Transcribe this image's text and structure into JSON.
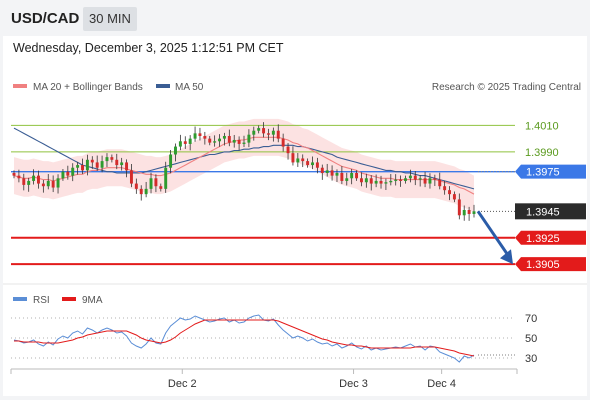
{
  "header": {
    "symbol": "USD/CAD",
    "timeframe": "30 MIN",
    "datetime": "Wednesday, December 3, 2025 1:12:51 PM CET"
  },
  "legend": {
    "ma20_label": "MA 20 + Bollinger Bands",
    "ma50_label": "MA 50",
    "copyright": "Research © 2025 Trading Central",
    "rsi_label": "RSI",
    "rsi_ma_label": "9MA"
  },
  "colors": {
    "candle_up": "#2e9b2e",
    "candle_down": "#d42b2b",
    "ma20": "#f08080",
    "bollinger_fill": "#fbd5d5",
    "ma50": "#3a5d94",
    "pivot": "#3b78e7",
    "resistance": "#8fc23f",
    "support": "#e31b1b",
    "price_tag": "#2b2b2b",
    "arrow": "#2b5ca8",
    "rsi": "#5b8ed6",
    "rsi_ma": "#e31b1b"
  },
  "chart_data": [
    {
      "type": "candlestick",
      "title": "USD/CAD",
      "ylim": [
        1.389,
        1.403
      ],
      "x_ticks": [
        "Dec 2",
        "Dec 3",
        "Dec 4"
      ],
      "x_tick_index": [
        35,
        70,
        88
      ],
      "n_bars": 95,
      "levels": [
        {
          "label": "1.4010",
          "value": 1.401,
          "kind": "resistance"
        },
        {
          "label": "1.3990",
          "value": 1.399,
          "kind": "resistance"
        },
        {
          "label": "1.3975",
          "value": 1.3975,
          "kind": "pivot"
        },
        {
          "label": "1.3945",
          "value": 1.3945,
          "kind": "last_price"
        },
        {
          "label": "1.3925",
          "value": 1.3925,
          "kind": "support"
        },
        {
          "label": "1.3905",
          "value": 1.3905,
          "kind": "support"
        }
      ],
      "forecast_arrow": {
        "from_index": 94,
        "from_value": 1.3945,
        "to_index": 100,
        "to_value": 1.3908
      },
      "close": [
        1.3972,
        1.397,
        1.3965,
        1.3968,
        1.3972,
        1.3966,
        1.3964,
        1.3968,
        1.3963,
        1.397,
        1.3975,
        1.3972,
        1.3978,
        1.398,
        1.3976,
        1.3984,
        1.3982,
        1.3978,
        1.3983,
        1.3986,
        1.3984,
        1.398,
        1.3982,
        1.3976,
        1.3966,
        1.3962,
        1.3958,
        1.3962,
        1.397,
        1.3964,
        1.3962,
        1.3978,
        1.3988,
        1.3994,
        1.3998,
        1.3996,
        1.4,
        1.4004,
        1.4002,
        1.4,
        1.3997,
        1.3998,
        1.4,
        1.4002,
        1.3997,
        1.3999,
        1.3996,
        1.3997,
        1.4003,
        1.4006,
        1.4008,
        1.4004,
        1.4003,
        1.4006,
        1.4,
        1.3994,
        1.3989,
        1.3982,
        1.3985,
        1.3983,
        1.398,
        1.3982,
        1.3978,
        1.3974,
        1.3976,
        1.3972,
        1.3974,
        1.3968,
        1.397,
        1.3974,
        1.397,
        1.3967,
        1.397,
        1.3966,
        1.3968,
        1.3966,
        1.3967,
        1.3968,
        1.3969,
        1.3968,
        1.397,
        1.3972,
        1.3969,
        1.397,
        1.3966,
        1.397,
        1.3969,
        1.3964,
        1.3961,
        1.3958,
        1.3954,
        1.3942,
        1.3946,
        1.3943,
        1.3945
      ],
      "high_offset": 0.0005,
      "low_offset": 0.0005,
      "ma20": [
        1.3972,
        1.3971,
        1.397,
        1.397,
        1.3971,
        1.397,
        1.3969,
        1.3969,
        1.3968,
        1.3969,
        1.397,
        1.3971,
        1.3972,
        1.3973,
        1.3973,
        1.3975,
        1.3976,
        1.3976,
        1.3977,
        1.3978,
        1.3978,
        1.3978,
        1.3978,
        1.3977,
        1.3976,
        1.3975,
        1.3974,
        1.3973,
        1.3973,
        1.3972,
        1.3972,
        1.3973,
        1.3974,
        1.3976,
        1.3978,
        1.398,
        1.3982,
        1.3984,
        1.3986,
        1.3988,
        1.399,
        1.3992,
        1.3994,
        1.3996,
        1.3997,
        1.3998,
        1.3999,
        1.3999,
        1.4,
        1.4001,
        1.4001,
        1.4001,
        1.4001,
        1.4001,
        1.4001,
        1.4,
        1.3999,
        1.3997,
        1.3996,
        1.3994,
        1.3993,
        1.3991,
        1.3989,
        1.3987,
        1.3985,
        1.3983,
        1.3981,
        1.3979,
        1.3978,
        1.3977,
        1.3976,
        1.3974,
        1.3973,
        1.3972,
        1.3971,
        1.397,
        1.397,
        1.397,
        1.3969,
        1.3969,
        1.3969,
        1.3969,
        1.3969,
        1.3969,
        1.3969,
        1.3969,
        1.3969,
        1.3968,
        1.3967,
        1.3966,
        1.3965,
        1.3963,
        1.3962,
        1.396,
        1.3958
      ],
      "bb_width": 0.0014,
      "ma50": [
        1.4008,
        1.4006,
        1.4004,
        1.4002,
        1.4,
        1.3998,
        1.3996,
        1.3994,
        1.3992,
        1.399,
        1.3988,
        1.3986,
        1.3984,
        1.3982,
        1.398,
        1.3979,
        1.3978,
        1.3977,
        1.3976,
        1.3975,
        1.3975,
        1.3974,
        1.3974,
        1.3974,
        1.3974,
        1.3974,
        1.3974,
        1.3975,
        1.3976,
        1.3977,
        1.3978,
        1.3979,
        1.398,
        1.3981,
        1.3982,
        1.3983,
        1.3984,
        1.3985,
        1.3986,
        1.3987,
        1.3988,
        1.3988,
        1.3989,
        1.399,
        1.399,
        1.3991,
        1.3991,
        1.3992,
        1.3992,
        1.3993,
        1.3993,
        1.3994,
        1.3994,
        1.3995,
        1.3995,
        1.3995,
        1.3995,
        1.3995,
        1.3994,
        1.3994,
        1.3993,
        1.3992,
        1.3991,
        1.399,
        1.3989,
        1.3988,
        1.3986,
        1.3985,
        1.3984,
        1.3983,
        1.3982,
        1.3981,
        1.398,
        1.3979,
        1.3978,
        1.3977,
        1.3976,
        1.3976,
        1.3975,
        1.3975,
        1.3974,
        1.3974,
        1.3973,
        1.3972,
        1.3972,
        1.3971,
        1.397,
        1.3969,
        1.3968,
        1.3967,
        1.3966,
        1.3965,
        1.3964,
        1.3963,
        1.3962
      ]
    },
    {
      "type": "line",
      "title": "RSI",
      "ylim": [
        20,
        80
      ],
      "y_ticks": [
        "70",
        "50",
        "30"
      ],
      "y_tick_values": [
        70,
        50,
        30
      ],
      "series": [
        {
          "name": "RSI",
          "values": [
            48,
            47,
            45,
            46,
            48,
            44,
            42,
            46,
            43,
            49,
            52,
            50,
            55,
            57,
            54,
            60,
            58,
            55,
            58,
            60,
            58,
            55,
            56,
            52,
            45,
            42,
            40,
            44,
            50,
            45,
            44,
            55,
            62,
            66,
            70,
            68,
            69,
            72,
            70,
            68,
            66,
            67,
            69,
            70,
            66,
            68,
            65,
            66,
            70,
            72,
            73,
            68,
            67,
            69,
            63,
            58,
            54,
            50,
            52,
            50,
            47,
            49,
            46,
            44,
            45,
            42,
            44,
            40,
            42,
            45,
            41,
            39,
            42,
            38,
            40,
            38,
            39,
            40,
            41,
            40,
            42,
            44,
            41,
            42,
            38,
            42,
            41,
            36,
            34,
            32,
            30,
            26,
            32,
            30,
            33
          ]
        },
        {
          "name": "9MA",
          "values": [
            47,
            47,
            46,
            46,
            46,
            46,
            45,
            45,
            45,
            45,
            46,
            47,
            48,
            50,
            51,
            53,
            54,
            55,
            56,
            57,
            57,
            57,
            57,
            57,
            55,
            53,
            50,
            48,
            47,
            46,
            45,
            46,
            48,
            51,
            55,
            58,
            61,
            64,
            66,
            68,
            68,
            68,
            68,
            68,
            68,
            68,
            68,
            68,
            68,
            68,
            68,
            68,
            68,
            68,
            67,
            65,
            63,
            61,
            59,
            57,
            55,
            53,
            51,
            49,
            48,
            46,
            45,
            44,
            43,
            43,
            42,
            42,
            41,
            40,
            40,
            40,
            40,
            40,
            40,
            40,
            40,
            40,
            41,
            41,
            41,
            41,
            41,
            40,
            39,
            38,
            37,
            35,
            34,
            33,
            32
          ]
        }
      ]
    }
  ]
}
